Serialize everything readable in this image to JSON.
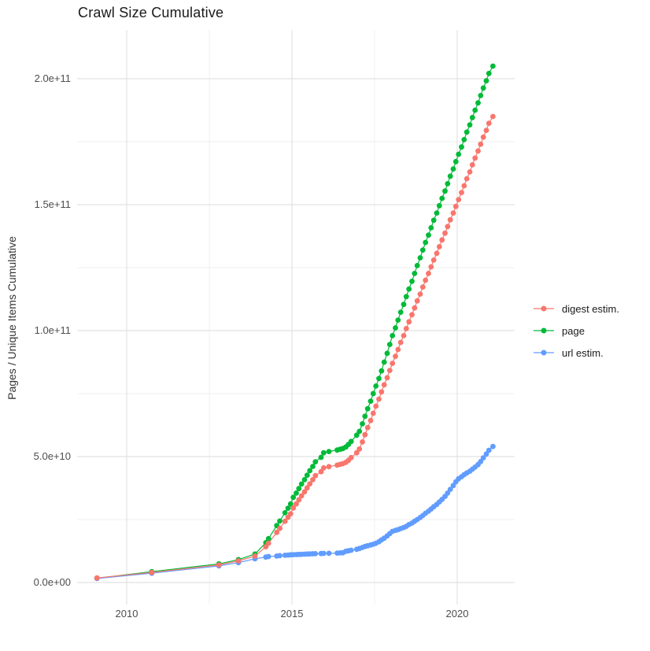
{
  "title": "Crawl Size Cumulative",
  "chart_data": {
    "type": "scatter",
    "title": "Crawl Size Cumulative",
    "xlabel": "",
    "ylabel": "Pages / Unique Items Cumulative",
    "value_units": "billions (1e9)",
    "x_axis": {
      "ticks": [
        2010,
        2015,
        2020
      ],
      "tick_labels": [
        "2010",
        "2015",
        "2020"
      ],
      "minor_ticks": [
        2012.5,
        2017.5
      ],
      "range": [
        2008.5,
        2021.8
      ],
      "grid": true
    },
    "y_axis": {
      "ticks_billions": [
        0,
        50,
        100,
        150,
        200
      ],
      "tick_labels": [
        "0.0e+00",
        "5.0e+10",
        "1.0e+11",
        "1.5e+11",
        "2.0e+11"
      ],
      "minor_ticks_billions": [
        25,
        75,
        125,
        175
      ],
      "range_billions": [
        -9,
        212
      ],
      "grid": true
    },
    "legend_position": "right",
    "series": [
      {
        "name": "digest estim.",
        "color": "#F8766D",
        "points": [
          [
            2009.1,
            1.8
          ],
          [
            2010.76,
            4.0
          ],
          [
            2012.79,
            7.0
          ],
          [
            2013.38,
            8.6
          ],
          [
            2013.88,
            10.5
          ],
          [
            2014.21,
            14.2
          ],
          [
            2014.29,
            15.6
          ],
          [
            2014.54,
            19.9
          ],
          [
            2014.63,
            21.5
          ],
          [
            2014.79,
            24.3
          ],
          [
            2014.88,
            25.9
          ],
          [
            2014.96,
            27.3
          ],
          [
            2015.04,
            29.6
          ],
          [
            2015.13,
            31.2
          ],
          [
            2015.21,
            32.8
          ],
          [
            2015.29,
            34.4
          ],
          [
            2015.38,
            36.0
          ],
          [
            2015.46,
            37.6
          ],
          [
            2015.54,
            39.2
          ],
          [
            2015.63,
            40.8
          ],
          [
            2015.71,
            42.4
          ],
          [
            2015.88,
            44.0
          ],
          [
            2015.96,
            45.5
          ],
          [
            2016.12,
            46.0
          ],
          [
            2016.37,
            46.6
          ],
          [
            2016.46,
            46.9
          ],
          [
            2016.54,
            47.2
          ],
          [
            2016.63,
            47.7
          ],
          [
            2016.71,
            48.5
          ],
          [
            2016.79,
            49.6
          ],
          [
            2016.96,
            51.5
          ],
          [
            2017.04,
            53.0
          ],
          [
            2017.13,
            55.8
          ],
          [
            2017.21,
            58.7
          ],
          [
            2017.29,
            61.5
          ],
          [
            2017.38,
            64.3
          ],
          [
            2017.46,
            67.2
          ],
          [
            2017.54,
            70.0
          ],
          [
            2017.63,
            72.8
          ],
          [
            2017.71,
            75.7
          ],
          [
            2017.79,
            78.5
          ],
          [
            2017.88,
            81.3
          ],
          [
            2017.96,
            84.2
          ],
          [
            2018.04,
            87.0
          ],
          [
            2018.13,
            89.8
          ],
          [
            2018.21,
            92.5
          ],
          [
            2018.29,
            95.3
          ],
          [
            2018.38,
            98.0
          ],
          [
            2018.46,
            100.8
          ],
          [
            2018.54,
            103.5
          ],
          [
            2018.63,
            106.3
          ],
          [
            2018.71,
            109.0
          ],
          [
            2018.79,
            111.8
          ],
          [
            2018.88,
            114.5
          ],
          [
            2018.96,
            117.3
          ],
          [
            2019.04,
            120.0
          ],
          [
            2019.13,
            122.7
          ],
          [
            2019.21,
            125.3
          ],
          [
            2019.29,
            128.0
          ],
          [
            2019.38,
            130.7
          ],
          [
            2019.46,
            133.3
          ],
          [
            2019.54,
            136.0
          ],
          [
            2019.63,
            138.7
          ],
          [
            2019.71,
            141.3
          ],
          [
            2019.79,
            144.0
          ],
          [
            2019.88,
            146.7
          ],
          [
            2019.96,
            149.3
          ],
          [
            2020.04,
            152.0
          ],
          [
            2020.13,
            154.8
          ],
          [
            2020.21,
            157.5
          ],
          [
            2020.29,
            160.3
          ],
          [
            2020.38,
            163.0
          ],
          [
            2020.46,
            165.8
          ],
          [
            2020.54,
            168.5
          ],
          [
            2020.63,
            171.3
          ],
          [
            2020.71,
            174.0
          ],
          [
            2020.79,
            176.8
          ],
          [
            2020.88,
            179.5
          ],
          [
            2020.96,
            182.3
          ],
          [
            2021.08,
            185.0
          ]
        ]
      },
      {
        "name": "page",
        "color": "#00BA38",
        "points": [
          [
            2009.1,
            1.7
          ],
          [
            2010.76,
            4.3
          ],
          [
            2012.79,
            7.4
          ],
          [
            2013.38,
            9.1
          ],
          [
            2013.88,
            11.3
          ],
          [
            2014.21,
            15.8
          ],
          [
            2014.29,
            17.4
          ],
          [
            2014.54,
            22.6
          ],
          [
            2014.63,
            24.4
          ],
          [
            2014.79,
            27.7
          ],
          [
            2014.88,
            29.5
          ],
          [
            2014.96,
            31.2
          ],
          [
            2015.04,
            33.8
          ],
          [
            2015.13,
            35.5
          ],
          [
            2015.21,
            37.3
          ],
          [
            2015.29,
            39.1
          ],
          [
            2015.38,
            40.8
          ],
          [
            2015.46,
            42.6
          ],
          [
            2015.54,
            44.4
          ],
          [
            2015.63,
            46.1
          ],
          [
            2015.71,
            47.9
          ],
          [
            2015.88,
            49.7
          ],
          [
            2015.96,
            51.5
          ],
          [
            2016.12,
            52.0
          ],
          [
            2016.37,
            52.6
          ],
          [
            2016.46,
            52.9
          ],
          [
            2016.54,
            53.2
          ],
          [
            2016.63,
            53.8
          ],
          [
            2016.71,
            54.8
          ],
          [
            2016.79,
            56.0
          ],
          [
            2016.96,
            58.5
          ],
          [
            2017.04,
            60.0
          ],
          [
            2017.13,
            63.0
          ],
          [
            2017.21,
            66.0
          ],
          [
            2017.29,
            69.0
          ],
          [
            2017.38,
            72.0
          ],
          [
            2017.46,
            75.0
          ],
          [
            2017.54,
            78.0
          ],
          [
            2017.63,
            81.0
          ],
          [
            2017.71,
            84.0
          ],
          [
            2017.79,
            87.5
          ],
          [
            2017.88,
            91.0
          ],
          [
            2017.96,
            94.5
          ],
          [
            2018.04,
            98.0
          ],
          [
            2018.13,
            101.1
          ],
          [
            2018.21,
            104.2
          ],
          [
            2018.29,
            107.3
          ],
          [
            2018.38,
            110.4
          ],
          [
            2018.46,
            113.5
          ],
          [
            2018.54,
            116.5
          ],
          [
            2018.63,
            119.6
          ],
          [
            2018.71,
            122.7
          ],
          [
            2018.79,
            125.8
          ],
          [
            2018.88,
            128.9
          ],
          [
            2018.96,
            132.0
          ],
          [
            2019.04,
            135.0
          ],
          [
            2019.13,
            137.9
          ],
          [
            2019.21,
            140.8
          ],
          [
            2019.29,
            143.8
          ],
          [
            2019.38,
            146.7
          ],
          [
            2019.46,
            149.6
          ],
          [
            2019.54,
            152.5
          ],
          [
            2019.63,
            155.4
          ],
          [
            2019.71,
            158.3
          ],
          [
            2019.79,
            161.3
          ],
          [
            2019.88,
            164.2
          ],
          [
            2019.96,
            167.1
          ],
          [
            2020.04,
            170.0
          ],
          [
            2020.13,
            172.9
          ],
          [
            2020.21,
            175.8
          ],
          [
            2020.29,
            178.8
          ],
          [
            2020.38,
            181.7
          ],
          [
            2020.46,
            184.6
          ],
          [
            2020.54,
            187.5
          ],
          [
            2020.63,
            190.4
          ],
          [
            2020.71,
            193.3
          ],
          [
            2020.79,
            196.3
          ],
          [
            2020.88,
            199.2
          ],
          [
            2020.96,
            202.1
          ],
          [
            2021.08,
            205.0
          ]
        ]
      },
      {
        "name": "url estim.",
        "color": "#619CFF",
        "points": [
          [
            2009.1,
            1.6
          ],
          [
            2010.76,
            3.7
          ],
          [
            2012.79,
            6.6
          ],
          [
            2013.38,
            7.9
          ],
          [
            2013.88,
            9.4
          ],
          [
            2014.21,
            10.1
          ],
          [
            2014.29,
            10.3
          ],
          [
            2014.54,
            10.5
          ],
          [
            2014.63,
            10.65
          ],
          [
            2014.79,
            10.8
          ],
          [
            2014.88,
            10.9
          ],
          [
            2014.96,
            11.0
          ],
          [
            2015.04,
            11.05
          ],
          [
            2015.13,
            11.1
          ],
          [
            2015.21,
            11.15
          ],
          [
            2015.29,
            11.2
          ],
          [
            2015.38,
            11.25
          ],
          [
            2015.46,
            11.3
          ],
          [
            2015.54,
            11.35
          ],
          [
            2015.63,
            11.4
          ],
          [
            2015.71,
            11.45
          ],
          [
            2015.88,
            11.5
          ],
          [
            2015.96,
            11.55
          ],
          [
            2016.12,
            11.6
          ],
          [
            2016.37,
            11.7
          ],
          [
            2016.46,
            11.75
          ],
          [
            2016.54,
            11.8
          ],
          [
            2016.63,
            12.4
          ],
          [
            2016.71,
            12.6
          ],
          [
            2016.79,
            12.8
          ],
          [
            2016.96,
            13.2
          ],
          [
            2017.04,
            13.5
          ],
          [
            2017.13,
            13.9
          ],
          [
            2017.21,
            14.3
          ],
          [
            2017.29,
            14.6
          ],
          [
            2017.38,
            14.9
          ],
          [
            2017.46,
            15.2
          ],
          [
            2017.54,
            15.6
          ],
          [
            2017.63,
            16.2
          ],
          [
            2017.71,
            16.9
          ],
          [
            2017.79,
            17.6
          ],
          [
            2017.88,
            18.5
          ],
          [
            2017.96,
            19.4
          ],
          [
            2018.04,
            20.3
          ],
          [
            2018.13,
            20.7
          ],
          [
            2018.21,
            21.0
          ],
          [
            2018.29,
            21.4
          ],
          [
            2018.38,
            21.8
          ],
          [
            2018.46,
            22.3
          ],
          [
            2018.54,
            23.0
          ],
          [
            2018.63,
            23.6
          ],
          [
            2018.71,
            24.3
          ],
          [
            2018.79,
            25.0
          ],
          [
            2018.88,
            25.8
          ],
          [
            2018.96,
            26.6
          ],
          [
            2019.04,
            27.5
          ],
          [
            2019.13,
            28.3
          ],
          [
            2019.21,
            29.2
          ],
          [
            2019.29,
            30.1
          ],
          [
            2019.38,
            31.0
          ],
          [
            2019.46,
            32.0
          ],
          [
            2019.54,
            33.0
          ],
          [
            2019.63,
            34.2
          ],
          [
            2019.71,
            35.5
          ],
          [
            2019.79,
            37.0
          ],
          [
            2019.88,
            38.5
          ],
          [
            2019.96,
            40.0
          ],
          [
            2020.04,
            41.2
          ],
          [
            2020.13,
            42.0
          ],
          [
            2020.21,
            42.8
          ],
          [
            2020.29,
            43.5
          ],
          [
            2020.38,
            44.2
          ],
          [
            2020.46,
            45.0
          ],
          [
            2020.54,
            45.8
          ],
          [
            2020.63,
            46.8
          ],
          [
            2020.71,
            48.0
          ],
          [
            2020.79,
            49.5
          ],
          [
            2020.88,
            51.0
          ],
          [
            2020.96,
            52.5
          ],
          [
            2021.08,
            54.0
          ]
        ]
      }
    ]
  }
}
